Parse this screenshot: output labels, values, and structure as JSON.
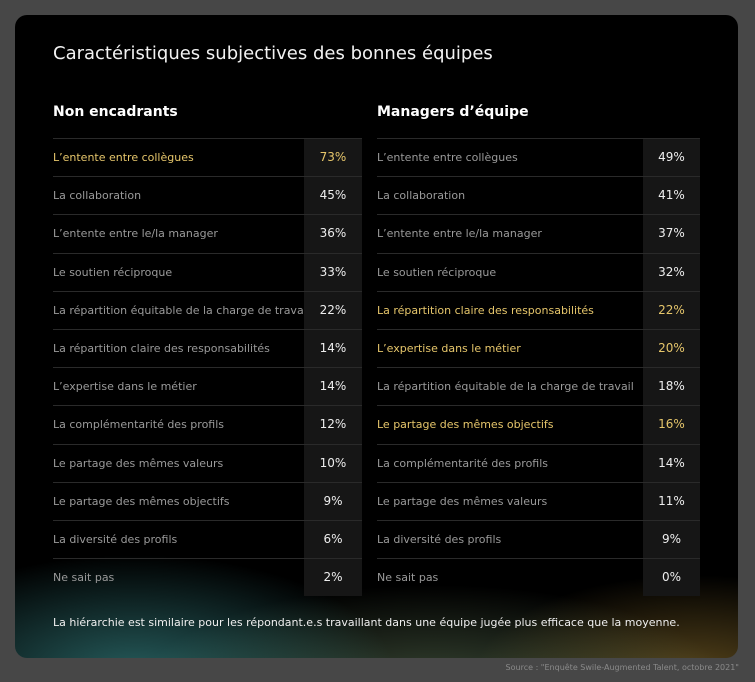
{
  "title": "Caractéristiques subjectives des bonnes équipes",
  "tables": [
    {
      "heading": "Non encadrants",
      "rows": [
        {
          "label": "L’entente entre collègues",
          "value": "73%",
          "highlighted": true
        },
        {
          "label": "La collaboration",
          "value": "45%"
        },
        {
          "label": "L’entente entre le/la manager",
          "value": "36%"
        },
        {
          "label": "Le soutien réciproque",
          "value": "33%"
        },
        {
          "label": "La répartition équitable de la charge de travail",
          "value": "22%"
        },
        {
          "label": "La répartition claire des responsabilités",
          "value": "14%"
        },
        {
          "label": "L’expertise dans le métier",
          "value": "14%"
        },
        {
          "label": "La complémentarité des profils",
          "value": "12%"
        },
        {
          "label": "Le partage des mêmes valeurs",
          "value": "10%"
        },
        {
          "label": "Le partage des mêmes objectifs",
          "value": "9%"
        },
        {
          "label": "La diversité des profils",
          "value": "6%"
        },
        {
          "label": "Ne sait pas",
          "value": "2%"
        }
      ]
    },
    {
      "heading": "Managers d’équipe",
      "rows": [
        {
          "label": "L’entente entre collègues",
          "value": "49%"
        },
        {
          "label": "La collaboration",
          "value": "41%"
        },
        {
          "label": "L’entente entre le/la manager",
          "value": "37%"
        },
        {
          "label": "Le soutien réciproque",
          "value": "32%"
        },
        {
          "label": "La répartition claire des responsabilités",
          "value": "22%",
          "highlighted": true
        },
        {
          "label": "L’expertise dans le métier",
          "value": "20%",
          "highlighted": true
        },
        {
          "label": "La répartition équitable de la charge de travail",
          "value": "18%"
        },
        {
          "label": "Le partage des mêmes objectifs",
          "value": "16%",
          "highlighted": true
        },
        {
          "label": "La complémentarité des profils",
          "value": "14%"
        },
        {
          "label": "Le partage des mêmes valeurs",
          "value": "11%"
        },
        {
          "label": "La diversité des profils",
          "value": "9%"
        },
        {
          "label": "Ne sait pas",
          "value": "0%"
        }
      ]
    }
  ],
  "footnote": "La hiérarchie est similaire pour les répondant.e.s travaillant dans une équipe jugée plus efficace que la moyenne.",
  "source": "Source : \"Enquête Swile-Augmented Talent, octobre 2021\""
}
